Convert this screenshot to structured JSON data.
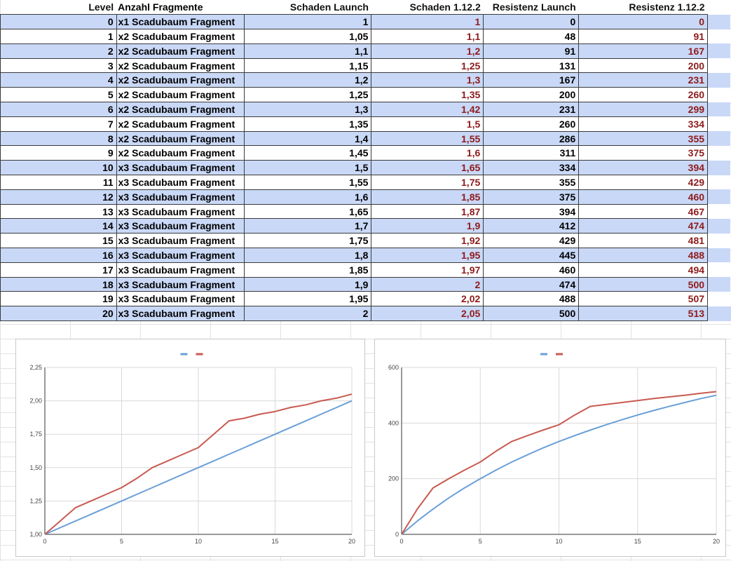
{
  "table": {
    "headers": [
      "Level",
      "Anzahl Fragmente",
      "Schaden Launch",
      "Schaden 1.12.2",
      "Resistenz Launch",
      "Resistenz 1.12.2"
    ],
    "rows": [
      [
        "0",
        "x1 Scadubaum Fragment",
        "1",
        "1",
        "0",
        "0"
      ],
      [
        "1",
        "x2 Scadubaum Fragment",
        "1,05",
        "1,1",
        "48",
        "91"
      ],
      [
        "2",
        "x2 Scadubaum Fragment",
        "1,1",
        "1,2",
        "91",
        "167"
      ],
      [
        "3",
        "x2 Scadubaum Fragment",
        "1,15",
        "1,25",
        "131",
        "200"
      ],
      [
        "4",
        "x2 Scadubaum Fragment",
        "1,2",
        "1,3",
        "167",
        "231"
      ],
      [
        "5",
        "x2 Scadubaum Fragment",
        "1,25",
        "1,35",
        "200",
        "260"
      ],
      [
        "6",
        "x2 Scadubaum Fragment",
        "1,3",
        "1,42",
        "231",
        "299"
      ],
      [
        "7",
        "x2 Scadubaum Fragment",
        "1,35",
        "1,5",
        "260",
        "334"
      ],
      [
        "8",
        "x2 Scadubaum Fragment",
        "1,4",
        "1,55",
        "286",
        "355"
      ],
      [
        "9",
        "x2 Scadubaum Fragment",
        "1,45",
        "1,6",
        "311",
        "375"
      ],
      [
        "10",
        "x3 Scadubaum Fragment",
        "1,5",
        "1,65",
        "334",
        "394"
      ],
      [
        "11",
        "x3 Scadubaum Fragment",
        "1,55",
        "1,75",
        "355",
        "429"
      ],
      [
        "12",
        "x3 Scadubaum Fragment",
        "1,6",
        "1,85",
        "375",
        "460"
      ],
      [
        "13",
        "x3 Scadubaum Fragment",
        "1,65",
        "1,87",
        "394",
        "467"
      ],
      [
        "14",
        "x3 Scadubaum Fragment",
        "1,7",
        "1,9",
        "412",
        "474"
      ],
      [
        "15",
        "x3 Scadubaum Fragment",
        "1,75",
        "1,92",
        "429",
        "481"
      ],
      [
        "16",
        "x3 Scadubaum Fragment",
        "1,8",
        "1,95",
        "445",
        "488"
      ],
      [
        "17",
        "x3 Scadubaum Fragment",
        "1,85",
        "1,97",
        "460",
        "494"
      ],
      [
        "18",
        "x3 Scadubaum Fragment",
        "1,9",
        "2",
        "474",
        "500"
      ],
      [
        "19",
        "x3 Scadubaum Fragment",
        "1,95",
        "2,02",
        "488",
        "507"
      ],
      [
        "20",
        "x3 Scadubaum Fragment",
        "2",
        "2,05",
        "500",
        "513"
      ]
    ]
  },
  "colors": {
    "row_alt": "#c9d8f7",
    "red_text": "#8e1b1b",
    "series_blue": "#6a9fd8",
    "series_red": "#c85a50"
  },
  "chart_data": [
    {
      "type": "line",
      "title": "",
      "xlabel": "",
      "ylabel": "",
      "legend": "top-center",
      "grid": true,
      "x": [
        0,
        1,
        2,
        3,
        4,
        5,
        6,
        7,
        8,
        9,
        10,
        11,
        12,
        13,
        14,
        15,
        16,
        17,
        18,
        19,
        20
      ],
      "xlim": [
        0,
        20
      ],
      "ylim": [
        1,
        2.25
      ],
      "x_ticks": [
        "0",
        "5",
        "10",
        "15",
        "20"
      ],
      "y_ticks": [
        "1,00",
        "1,25",
        "1,50",
        "1,75",
        "2,00",
        "2,25"
      ],
      "series": [
        {
          "color": "#6a9fd8",
          "values": [
            1,
            1.05,
            1.1,
            1.15,
            1.2,
            1.25,
            1.3,
            1.35,
            1.4,
            1.45,
            1.5,
            1.55,
            1.6,
            1.65,
            1.7,
            1.75,
            1.8,
            1.85,
            1.9,
            1.95,
            2
          ]
        },
        {
          "color": "#c85a50",
          "values": [
            1,
            1.1,
            1.2,
            1.25,
            1.3,
            1.35,
            1.42,
            1.5,
            1.55,
            1.6,
            1.65,
            1.75,
            1.85,
            1.87,
            1.9,
            1.92,
            1.95,
            1.97,
            2,
            2.02,
            2.05
          ]
        }
      ]
    },
    {
      "type": "line",
      "title": "",
      "xlabel": "",
      "ylabel": "",
      "legend": "top-center",
      "grid": true,
      "x": [
        0,
        1,
        2,
        3,
        4,
        5,
        6,
        7,
        8,
        9,
        10,
        11,
        12,
        13,
        14,
        15,
        16,
        17,
        18,
        19,
        20
      ],
      "xlim": [
        0,
        20
      ],
      "ylim": [
        0,
        600
      ],
      "x_ticks": [
        "0",
        "5",
        "10",
        "15",
        "20"
      ],
      "y_ticks": [
        "0",
        "200",
        "400",
        "600"
      ],
      "series": [
        {
          "color": "#6a9fd8",
          "values": [
            0,
            48,
            91,
            131,
            167,
            200,
            231,
            260,
            286,
            311,
            334,
            355,
            375,
            394,
            412,
            429,
            445,
            460,
            474,
            488,
            500
          ]
        },
        {
          "color": "#c85a50",
          "values": [
            0,
            91,
            167,
            200,
            231,
            260,
            299,
            334,
            355,
            375,
            394,
            429,
            460,
            467,
            474,
            481,
            488,
            494,
            500,
            507,
            513
          ]
        }
      ]
    }
  ]
}
